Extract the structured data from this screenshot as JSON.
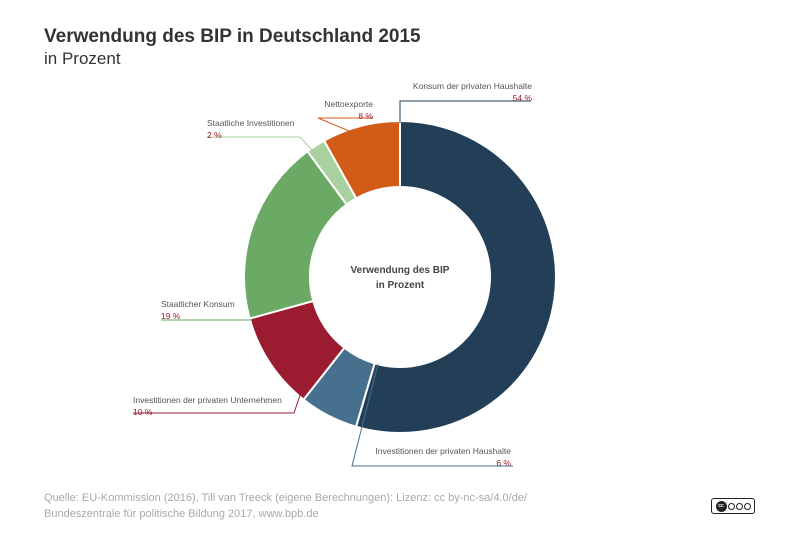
{
  "chart_data": {
    "type": "pie",
    "variant": "donut",
    "title": "Verwendung des BIP in Deutschland 2015",
    "subtitle": "in Prozent",
    "center_label": [
      "Verwendung des BIP",
      "in Prozent"
    ],
    "slices": [
      {
        "name": "Konsum der privaten Haushalte",
        "value": 54,
        "label": "54 %",
        "color": "#233f57"
      },
      {
        "name": "Investitionen der privaten Haushalte",
        "value": 6,
        "label": "6 %",
        "color": "#46708e"
      },
      {
        "name": "Investitionen der privaten Unternehmen",
        "value": 10,
        "label": "10 %",
        "color": "#9b1b30"
      },
      {
        "name": "Staatlicher Konsum",
        "value": 19,
        "label": "19 %",
        "color": "#6aaa64"
      },
      {
        "name": "Staatliche Investitionen",
        "value": 2,
        "label": "2 %",
        "color": "#a9d09f"
      },
      {
        "name": "Nettoexporte",
        "value": 8,
        "label": "8 %",
        "color": "#d05c18"
      }
    ]
  },
  "source": {
    "line1": "Quelle: EU-Kommission (2016), Till van Treeck (eigene Berechnungen): Lizenz: cc by-nc-sa/4.0/de/",
    "line2": "Bundeszentrale für politische Bildung 2017, www.bpb.de"
  },
  "license_badge": {
    "text": "cc",
    "icon": "creative-commons-by-nc-sa-icon"
  }
}
